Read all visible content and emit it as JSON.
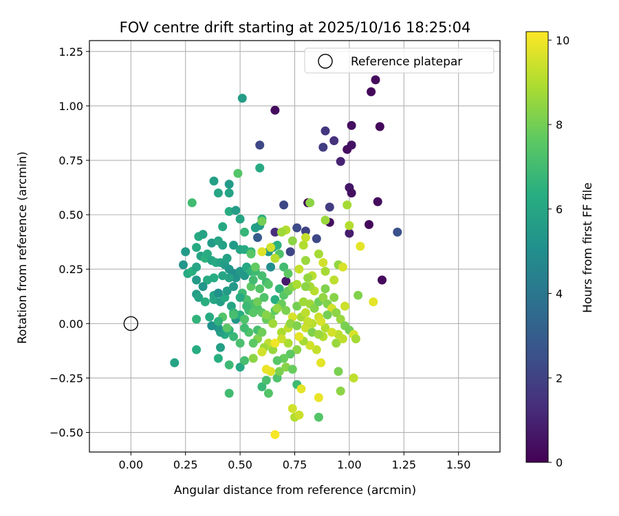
{
  "chart_data": {
    "type": "scatter",
    "title": "FOV centre drift starting at 2025/10/16 18:25:04",
    "xlabel": "Angular distance from reference (arcmin)",
    "ylabel": "Rotation from reference (arcmin)",
    "xlim": [
      -0.19,
      1.69
    ],
    "ylim": [
      -0.59,
      1.3
    ],
    "xticks": [
      0.0,
      0.25,
      0.5,
      0.75,
      1.0,
      1.25,
      1.5
    ],
    "yticks": [
      -0.5,
      -0.25,
      0.0,
      0.25,
      0.5,
      0.75,
      1.0,
      1.25
    ],
    "xtick_labels": [
      "0.00",
      "0.25",
      "0.50",
      "0.75",
      "1.00",
      "1.25",
      "1.50"
    ],
    "ytick_labels": [
      "−0.50",
      "−0.25",
      "0.00",
      "0.25",
      "0.50",
      "0.75",
      "1.00",
      "1.25"
    ],
    "grid": true,
    "legend": {
      "position": "top-right",
      "entries": [
        "Reference platepar"
      ]
    },
    "reference_point": {
      "x": 0.0,
      "y": 0.0,
      "label": "Reference platepar"
    },
    "colorbar": {
      "label": "Hours from first FF file",
      "min": 0,
      "max": 10.2,
      "ticks": [
        0,
        2,
        4,
        6,
        8,
        10
      ],
      "tick_labels": [
        "0",
        "2",
        "4",
        "6",
        "8",
        "10"
      ],
      "colormap": "viridis"
    },
    "points": [
      [
        1.12,
        1.12,
        0.3
      ],
      [
        1.1,
        1.065,
        0.2
      ],
      [
        0.66,
        0.98,
        0.3
      ],
      [
        1.01,
        0.91,
        0.4
      ],
      [
        1.14,
        0.905,
        0.2
      ],
      [
        0.89,
        0.885,
        1.6
      ],
      [
        0.93,
        0.84,
        1.4
      ],
      [
        1.01,
        0.82,
        0.5
      ],
      [
        0.88,
        0.81,
        1.8
      ],
      [
        0.99,
        0.8,
        0.4
      ],
      [
        0.96,
        0.745,
        1.0
      ],
      [
        1.0,
        0.625,
        0.6
      ],
      [
        1.01,
        0.6,
        0.4
      ],
      [
        1.13,
        0.56,
        0.3
      ],
      [
        0.91,
        0.535,
        1.8
      ],
      [
        1.09,
        0.455,
        0.2
      ],
      [
        0.91,
        0.465,
        0.4
      ],
      [
        1.0,
        0.415,
        0.8
      ],
      [
        1.22,
        0.42,
        2.5
      ],
      [
        1.15,
        0.2,
        0.3
      ],
      [
        0.7,
        0.545,
        2.2
      ],
      [
        0.81,
        0.555,
        0.1
      ],
      [
        0.76,
        0.44,
        2.3
      ],
      [
        0.8,
        0.425,
        2.0
      ],
      [
        0.85,
        0.39,
        2.2
      ],
      [
        0.73,
        0.33,
        2.1
      ],
      [
        0.66,
        0.42,
        1.3
      ],
      [
        0.59,
        0.82,
        2.2
      ],
      [
        0.58,
        0.395,
        2.9
      ],
      [
        0.71,
        0.195,
        0.7
      ],
      [
        0.51,
        1.035,
        5.6
      ],
      [
        0.59,
        0.715,
        6.2
      ],
      [
        0.49,
        0.69,
        7.4
      ],
      [
        0.38,
        0.655,
        5.7
      ],
      [
        0.45,
        0.64,
        5.5
      ],
      [
        0.4,
        0.6,
        6.0
      ],
      [
        0.45,
        0.6,
        5.9
      ],
      [
        0.28,
        0.555,
        7.0
      ],
      [
        0.42,
        0.445,
        6.1
      ],
      [
        0.31,
        0.4,
        6.2
      ],
      [
        0.33,
        0.41,
        5.9
      ],
      [
        0.37,
        0.37,
        5.5
      ],
      [
        0.4,
        0.38,
        6.0
      ],
      [
        0.42,
        0.36,
        5.8
      ],
      [
        0.47,
        0.36,
        5.5
      ],
      [
        0.5,
        0.34,
        5.9
      ],
      [
        0.52,
        0.34,
        6.2
      ],
      [
        0.55,
        0.33,
        6.6
      ],
      [
        0.57,
        0.44,
        5.7
      ],
      [
        0.59,
        0.45,
        5.6
      ],
      [
        0.6,
        0.48,
        6.4
      ],
      [
        0.63,
        0.33,
        5.5
      ],
      [
        0.65,
        0.35,
        5.3
      ],
      [
        0.67,
        0.36,
        6.5
      ],
      [
        0.45,
        0.515,
        6.3
      ],
      [
        0.48,
        0.52,
        5.6
      ],
      [
        0.5,
        0.48,
        6.0
      ],
      [
        0.52,
        0.42,
        6.7
      ],
      [
        0.3,
        0.35,
        6.2
      ],
      [
        0.32,
        0.31,
        5.9
      ],
      [
        0.34,
        0.3,
        6.5
      ],
      [
        0.25,
        0.33,
        5.5
      ],
      [
        0.24,
        0.27,
        5.3
      ],
      [
        0.26,
        0.23,
        6.2
      ],
      [
        0.28,
        0.24,
        6.4
      ],
      [
        0.3,
        0.26,
        6.0
      ],
      [
        0.3,
        0.2,
        5.5
      ],
      [
        0.35,
        0.32,
        6.3
      ],
      [
        0.37,
        0.29,
        6.0
      ],
      [
        0.39,
        0.28,
        6.2
      ],
      [
        0.41,
        0.28,
        5.9
      ],
      [
        0.43,
        0.27,
        5.6
      ],
      [
        0.45,
        0.25,
        5.3
      ],
      [
        0.47,
        0.23,
        5.0
      ],
      [
        0.48,
        0.21,
        5.2
      ],
      [
        0.5,
        0.24,
        5.5
      ],
      [
        0.52,
        0.22,
        5.4
      ],
      [
        0.53,
        0.26,
        6.1
      ],
      [
        0.55,
        0.24,
        6.6
      ],
      [
        0.57,
        0.24,
        6.9
      ],
      [
        0.6,
        0.22,
        7.1
      ],
      [
        0.62,
        0.19,
        7.0
      ],
      [
        0.64,
        0.26,
        5.0
      ],
      [
        0.66,
        0.3,
        6.9
      ],
      [
        0.68,
        0.32,
        7.3
      ],
      [
        0.7,
        0.26,
        7.0
      ],
      [
        0.72,
        0.23,
        7.6
      ],
      [
        0.45,
        0.21,
        5.9
      ],
      [
        0.47,
        0.17,
        5.4
      ],
      [
        0.44,
        0.3,
        5.8
      ],
      [
        0.42,
        0.22,
        6.0
      ],
      [
        0.38,
        0.21,
        6.3
      ],
      [
        0.35,
        0.2,
        6.2
      ],
      [
        0.3,
        0.135,
        5.6
      ],
      [
        0.31,
        0.12,
        5.9
      ],
      [
        0.34,
        0.1,
        6.4
      ],
      [
        0.38,
        0.11,
        6.0
      ],
      [
        0.41,
        0.1,
        5.7
      ],
      [
        0.43,
        0.12,
        6.2
      ],
      [
        0.46,
        0.08,
        6.0
      ],
      [
        0.48,
        0.02,
        5.3
      ],
      [
        0.5,
        0.04,
        6.4
      ],
      [
        0.52,
        0.02,
        6.9
      ],
      [
        0.54,
        0.06,
        7.0
      ],
      [
        0.56,
        0.09,
        7.2
      ],
      [
        0.58,
        0.07,
        7.3
      ],
      [
        0.6,
        0.05,
        7.6
      ],
      [
        0.62,
        0.02,
        7.8
      ],
      [
        0.64,
        0.03,
        8.0
      ],
      [
        0.66,
        0.11,
        6.4
      ],
      [
        0.68,
        0.16,
        6.6
      ],
      [
        0.7,
        0.13,
        7.5
      ],
      [
        0.72,
        0.15,
        7.8
      ],
      [
        0.74,
        0.17,
        8.3
      ],
      [
        0.76,
        0.08,
        8.0
      ],
      [
        0.78,
        0.03,
        8.8
      ],
      [
        0.8,
        0.05,
        9.2
      ],
      [
        0.82,
        0.09,
        8.7
      ],
      [
        0.84,
        0.07,
        8.3
      ],
      [
        0.86,
        0.1,
        7.9
      ],
      [
        0.88,
        0.12,
        8.5
      ],
      [
        0.9,
        0.09,
        8.2
      ],
      [
        0.92,
        0.07,
        9.5
      ],
      [
        0.94,
        0.05,
        8.4
      ],
      [
        0.96,
        0.02,
        8.6
      ],
      [
        0.98,
        -0.01,
        8.1
      ],
      [
        1.0,
        -0.03,
        8.0
      ],
      [
        1.02,
        -0.05,
        9.6
      ],
      [
        1.04,
        0.13,
        8.2
      ],
      [
        1.11,
        0.1,
        9.8
      ],
      [
        1.03,
        -0.07,
        8.8
      ],
      [
        0.95,
        -0.05,
        9.2
      ],
      [
        0.94,
        -0.09,
        8.6
      ],
      [
        0.88,
        -0.06,
        9.0
      ],
      [
        0.85,
        -0.12,
        9.3
      ],
      [
        0.82,
        -0.1,
        9.5
      ],
      [
        0.79,
        -0.08,
        8.8
      ],
      [
        0.76,
        -0.12,
        8.4
      ],
      [
        0.73,
        -0.14,
        7.6
      ],
      [
        0.7,
        -0.16,
        7.8
      ],
      [
        0.67,
        -0.17,
        7.5
      ],
      [
        0.65,
        -0.12,
        8.6
      ],
      [
        0.63,
        -0.09,
        9.2
      ],
      [
        0.61,
        -0.11,
        8.7
      ],
      [
        0.58,
        -0.07,
        8.2
      ],
      [
        0.56,
        -0.09,
        7.6
      ],
      [
        0.54,
        -0.04,
        7.3
      ],
      [
        0.52,
        -0.02,
        7.0
      ],
      [
        0.5,
        -0.09,
        7.2
      ],
      [
        0.47,
        -0.06,
        6.8
      ],
      [
        0.45,
        -0.03,
        6.5
      ],
      [
        0.43,
        -0.05,
        6.2
      ],
      [
        0.41,
        -0.04,
        5.8
      ],
      [
        0.4,
        -0.02,
        5.4
      ],
      [
        0.37,
        -0.01,
        5.1
      ],
      [
        0.41,
        -0.11,
        5.7
      ],
      [
        0.4,
        -0.16,
        6.4
      ],
      [
        0.45,
        -0.19,
        6.9
      ],
      [
        0.5,
        -0.2,
        6.1
      ],
      [
        0.52,
        -0.17,
        7.1
      ],
      [
        0.3,
        -0.12,
        6.3
      ],
      [
        0.3,
        0.02,
        6.6
      ],
      [
        0.2,
        -0.18,
        5.9
      ],
      [
        0.45,
        -0.32,
        7.0
      ],
      [
        0.6,
        -0.29,
        6.8
      ],
      [
        0.62,
        -0.26,
        7.2
      ],
      [
        0.63,
        -0.32,
        7.4
      ],
      [
        0.67,
        -0.25,
        7.3
      ],
      [
        0.68,
        -0.22,
        8.1
      ],
      [
        0.71,
        -0.2,
        8.3
      ],
      [
        0.74,
        -0.21,
        7.8
      ],
      [
        0.76,
        -0.28,
        6.9
      ],
      [
        0.78,
        -0.3,
        9.8
      ],
      [
        0.74,
        -0.39,
        9.5
      ],
      [
        0.75,
        -0.43,
        9.0
      ],
      [
        0.77,
        -0.42,
        9.4
      ],
      [
        0.86,
        -0.43,
        7.4
      ],
      [
        0.86,
        -0.34,
        9.9
      ],
      [
        0.96,
        -0.31,
        8.4
      ],
      [
        0.95,
        -0.22,
        8.1
      ],
      [
        1.02,
        -0.25,
        9.2
      ],
      [
        0.66,
        -0.51,
        10.1
      ],
      [
        0.87,
        -0.18,
        9.8
      ],
      [
        0.64,
        -0.22,
        9.7
      ],
      [
        0.69,
        -0.04,
        8.9
      ],
      [
        0.72,
        -0.02,
        9.2
      ],
      [
        0.74,
        0.03,
        9.6
      ],
      [
        0.77,
        -0.06,
        9.8
      ],
      [
        0.8,
        -0.02,
        9.4
      ],
      [
        0.83,
        0.0,
        9.1
      ],
      [
        0.86,
        0.03,
        9.4
      ],
      [
        0.89,
        -0.02,
        9.0
      ],
      [
        0.92,
        -0.04,
        9.5
      ],
      [
        0.97,
        -0.07,
        9.2
      ],
      [
        0.98,
        0.08,
        9.4
      ],
      [
        1.0,
        0.45,
        9.0
      ],
      [
        1.05,
        0.355,
        9.8
      ],
      [
        0.99,
        0.545,
        8.8
      ],
      [
        0.89,
        0.475,
        8.6
      ],
      [
        0.82,
        0.555,
        8.4
      ],
      [
        0.8,
        0.395,
        9.3
      ],
      [
        0.77,
        0.25,
        9.3
      ],
      [
        0.8,
        0.29,
        8.6
      ],
      [
        0.83,
        0.22,
        9.1
      ],
      [
        0.86,
        0.32,
        8.8
      ],
      [
        0.88,
        0.28,
        9.5
      ],
      [
        0.93,
        0.2,
        9.2
      ],
      [
        0.95,
        0.27,
        8.5
      ],
      [
        0.97,
        0.26,
        9.6
      ],
      [
        0.89,
        0.24,
        8.8
      ],
      [
        0.87,
        0.01,
        9.6
      ],
      [
        0.84,
        0.15,
        9.1
      ],
      [
        0.81,
        0.21,
        8.5
      ],
      [
        0.79,
        0.36,
        9.0
      ],
      [
        0.76,
        0.18,
        8.9
      ],
      [
        0.74,
        0.38,
        8.4
      ],
      [
        0.71,
        0.43,
        9.0
      ],
      [
        0.69,
        0.42,
        8.7
      ],
      [
        0.66,
        0.3,
        9.1
      ],
      [
        0.64,
        0.35,
        9.5
      ],
      [
        0.6,
        0.33,
        9.7
      ],
      [
        0.6,
        0.47,
        8.0
      ],
      [
        0.55,
        0.32,
        7.5
      ],
      [
        0.57,
        0.26,
        7.7
      ],
      [
        0.59,
        0.16,
        7.4
      ],
      [
        0.58,
        0.1,
        7.9
      ],
      [
        0.61,
        0.12,
        7.3
      ],
      [
        0.53,
        0.11,
        7.2
      ],
      [
        0.51,
        0.14,
        6.9
      ],
      [
        0.55,
        0.17,
        7.6
      ],
      [
        0.56,
        0.2,
        7.0
      ],
      [
        0.63,
        0.18,
        7.4
      ],
      [
        0.66,
        0.06,
        7.6
      ],
      [
        0.69,
        0.09,
        7.8
      ],
      [
        0.71,
        0.06,
        8.1
      ],
      [
        0.73,
        0.0,
        8.5
      ],
      [
        0.76,
        -0.01,
        8.2
      ],
      [
        0.79,
        0.1,
        8.7
      ],
      [
        0.81,
        0.01,
        9.3
      ],
      [
        0.83,
        -0.04,
        8.2
      ],
      [
        0.86,
        -0.05,
        8.6
      ],
      [
        0.9,
        0.04,
        8.0
      ],
      [
        0.93,
        0.12,
        8.3
      ],
      [
        0.89,
        0.16,
        8.2
      ],
      [
        0.82,
        0.17,
        8.8
      ],
      [
        0.8,
        0.17,
        8.4
      ],
      [
        0.72,
        -0.09,
        8.9
      ],
      [
        0.69,
        -0.07,
        9.4
      ],
      [
        0.66,
        -0.09,
        10.0
      ],
      [
        0.62,
        -0.21,
        9.9
      ],
      [
        0.6,
        -0.13,
        9.5
      ],
      [
        0.56,
        -0.16,
        8.4
      ],
      [
        0.52,
        0.02,
        7.3
      ],
      [
        0.47,
        0.05,
        6.7
      ],
      [
        0.47,
        0.04,
        7.1
      ],
      [
        0.44,
        -0.02,
        7.5
      ],
      [
        0.42,
        0.03,
        7.4
      ],
      [
        0.4,
        0.01,
        6.5
      ],
      [
        0.36,
        0.03,
        6.2
      ],
      [
        0.38,
        0.13,
        6.0
      ],
      [
        0.33,
        0.17,
        5.3
      ],
      [
        0.4,
        0.14,
        5.1
      ],
      [
        0.44,
        0.15,
        5.6
      ],
      [
        0.5,
        0.12,
        6.2
      ],
      [
        0.53,
        0.08,
        6.9
      ],
      [
        0.56,
        0.05,
        7.5
      ],
      [
        0.58,
        -0.03,
        7.1
      ],
      [
        0.6,
        -0.04,
        7.9
      ],
      [
        0.62,
        0.04,
        8.3
      ],
      [
        0.65,
        0.0,
        8.7
      ],
      [
        0.67,
        0.07,
        8.5
      ]
    ]
  }
}
